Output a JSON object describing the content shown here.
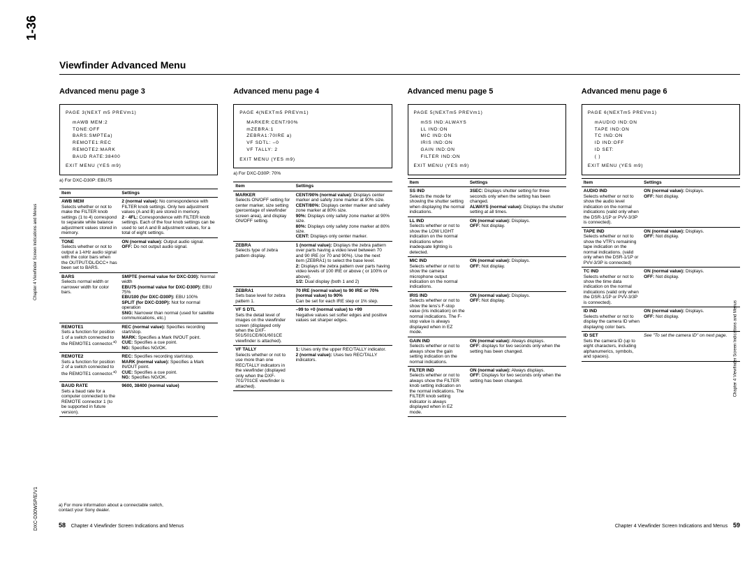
{
  "page_number_side": "1-36",
  "model_side": "DXC-D30WSP/E/V1",
  "side_text": "Chapter 4 Viewfinder Screen Indications and Menus",
  "title": "Viewfinder Advanced Menu",
  "footer_left": {
    "pn": "58",
    "text": "Chapter 4  Viewfinder Screen Indications and Menus"
  },
  "footer_right": {
    "text": "Chapter 4  Viewfinder Screen Indications and Menus",
    "pn": "59"
  },
  "page_footnote": "a)  For more information about a connectable switch,\n     contact your Sony dealer.",
  "cols": [
    {
      "head": "Advanced menu page 3",
      "box_top_left": "PAGE 3(NEXT m5  PREVm1)",
      "box_lines": "mAWB MEM:2\nTONE:OFF\nBARS:SMPTEa)\nREMOTE1:REC\nREMOTE2:MARK\nBAUD RATE:38400",
      "box_bottom": "EXIT MENU (YES m9)",
      "foot": "a)  For DXC-D30P: EBU75",
      "rows": [
        {
          "item": "<span class='b'>AWB MEM</span><br>Selects whether or not to make the FILTER knob settings (1 to 4) correspond to separate white balance adjustment values stored in memory.",
          "set": "<span class='b'>2 (normal value):</span> No correspondence with FILTER knob settings. Only two adjustment values (A and B) are stored in memory.<br><span class='b'>2 · 4FL:</span> Correspondence with FILTER knob settings. Each of the four knob settings can be used to set A and B adjustment values, for a total of eight settings."
        },
        {
          "item": "<span class='b'>TONE</span><br>Selects whether or not to output a 1-kHz audio signal with the color bars when the OUTPUT/DL/DCC+ has been set to BARS.",
          "set": "<span class='b'>ON (normal value):</span> Output audio signal.<br><span class='b'>OFF:</span> Do not output audio signal."
        },
        {
          "item": "<span class='b'>BARS</span><br>Selects normal width or narrower width for color bars.",
          "set": "<span class='b'>SMPTE (normal value for DXC-D30):</span> Normal width<br><span class='b'>EBU75 (normal value for DXC-D30P):</span> EBU 75%<br><span class='b'>EBU100 (for DXC-D30P):</span> EBU 100%<br><span class='b'>SPLIT (for DXC-D30P):</span> Not for normal operation<br><span class='b'>SNG:</span> Narrower than normal (used for satellite communications, etc.)"
        },
        {
          "item": "<span class='b'>REMOTE1</span><br>Sets a function for position 1 of a switch connected to the REMOTE1 connector.<sup>a)</sup>",
          "set": "<span class='b'>REC (normal value):</span> Specifies recording start/stop.<br><span class='b'>MARK:</span> Specifies a Mark IN/OUT point.<br><span class='b'>CUE:</span> Specifies a cue point.<br><span class='b'>NG:</span> Specifies NG/OK."
        },
        {
          "item": "<span class='b'>REMOTE2</span><br>Sets a function for position 2 of a switch connected to the REMOTE1 connector.<sup>a)</sup>",
          "set": "<span class='b'>REC:</span> Specifies recording start/stop.<br><span class='b'>MARK (normal value):</span> Specifies a Mark IN/OUT point.<br><span class='b'>CUE:</span> Specifies a cue point.<br><span class='b'>NG:</span> Specifies NG/OK."
        },
        {
          "item": "<span class='b'>BAUD RATE</span><br>Sets a baud rate for a computer connected to the REMOTE connector 1 (to be supported in future version).",
          "set": "<span class='b'>9600, 38400 (normal value)</span>"
        }
      ]
    },
    {
      "head": "Advanced menu page 4",
      "box_top_left": "PAGE 4(NEXTm5  PREVm1)",
      "box_lines": "MARKER:CENT/90%\nmZEBRA:1\nZEBRA1:70IRE a)\nVF SDTL: –0\nVF TALLY: 2",
      "box_bottom": "EXIT MENU (YES m9)",
      "foot": "a)  For DXC-D30P: 70%",
      "rows": [
        {
          "item": "<span class='b'>MARKER</span><br>Selects ON/OFF setting for center marker, size setting (percentage of viewfinder screen area), and display ON/OFF setting.",
          "set": "<span class='b'>CENT/90% (normal value):</span> Displays center marker and safety zone marker at 90% size.<br><span class='b'>CENT/80%:</span> Displays center marker and safety zone marker at 80% size.<br><span class='b'>90%:</span> Displays only safety zone marker at 90% size.<br><span class='b'>80%:</span> Displays only safety zone marker at 80% size.<br><span class='b'>CENT:</span> Displays only center marker."
        },
        {
          "item": "<span class='b'>ZEBRA</span><br>Selects type of zebra pattern display.",
          "set": "<span class='b'>1 (normal value):</span> Displays the zebra pattern over parts having a video level between 70 and 90 IRE (or 70 and 90%). Use the next item (ZEBRA1) to select the base level.<br><span class='b'>2:</span> Displays the zebra pattern over parts having video levels of 100 IRE or above ( or 100% or above).<br><span class='b'>1/2:</span> Dual display (both 1 and 2)"
        },
        {
          "item": "<span class='b'>ZEBRA1</span><br>Sets base level for zebra pattern 1.",
          "set": "<span class='b'>70 IRE (normal value) to 90 IRE or 70% (normal value) to 90%</span><br>Can be set for each IRE step or 1% step."
        },
        {
          "item": "<span class='b'>VF S DTL</span><br>Sets the detail level of images on the viewfinder screen (displayed only when the DXF-501/501CE/601/601CE viewfinder is attached).",
          "set": "<span class='b'>–99 to +0 (normal value) to +99</span><br>Negative values set softer edges and positive values set sharper edges."
        },
        {
          "item": "<span class='b'>VF TALLY</span><br>Selects whether or not to use more than one REC/TALLY indicators in the viewfinder (displayed only when the DXF-701/701CE viewfinder is attached).",
          "set": "<span class='b'>1:</span> Uses only the upper REC/TALLY indicator.<br><span class='b'>2 (normal value):</span> Uses two REC/TALLY indicators."
        }
      ]
    },
    {
      "head": "Advanced menu page 5",
      "box_top_left": "PAGE 5(NEXTm5  PREVm1)",
      "box_lines": "mSS IND:ALWAYS\nLL IND:ON\nMIC IND:ON\nIRIS IND:ON\nGAIN IND:ON\nFILTER IND:ON",
      "box_bottom": "EXIT MENU (YES m9)",
      "foot": "",
      "rows": [
        {
          "item": "<span class='b'>SS IND</span><br>Selects the mode for showing the shutter setting when displaying the normal indications.",
          "set": "<span class='b'>3SEC:</span> Displays shutter setting for three seconds only when the setting has been changed.<br><span class='b'>ALWAYS (normal value):</span> Displays the shutter setting at all times."
        },
        {
          "item": "<span class='b'>LL IND</span><br>Selects whether or not to show the LOW LIGHT indication on the normal indications when inadequate lighting is detected.",
          "set": "<span class='b'>ON (normal value):</span> Displays.<br><span class='b'>OFF:</span> Not display."
        },
        {
          "item": "<span class='b'>MIC IND</span><br>Selects whether or not to show the camera microphone output indication on the normal indications.",
          "set": "<span class='b'>ON (normal value):</span> Displays.<br><span class='b'>OFF:</span> Not display."
        },
        {
          "item": "<span class='b'>IRIS IND</span><br>Selects whether or not to show the lens's F-stop value (iris indication) on the normal indications. The F-stop value is always displayed when in EZ mode.",
          "set": "<span class='b'>ON (normal value):</span> Displays.<br><span class='b'>OFF:</span> Not display."
        },
        {
          "item": "<span class='b'>GAIN IND</span><br>Selects whether or not to always show the gain setting indication on the normal indications.",
          "set": "<span class='b'>ON (normal value):</span> Always displays.<br><span class='b'>OFF:</span> displays for two seconds only when the setting has been changed."
        },
        {
          "item": "<span class='b'>FILTER IND</span><br>Selects whether or not to always show the FILTER knob setting indication on the normal indications. The FILTER knob setting indicator is always displayed when in EZ mode.",
          "set": "<span class='b'>ON (normal value):</span> Always displays.<br><span class='b'>OFF:</span> Displays for two seconds only when the setting has been changed."
        }
      ]
    },
    {
      "head": "Advanced menu page 6",
      "box_top_left": "PAGE 6(NEXTm5  PREVm1)",
      "box_lines": "mAUDIO IND:ON\nTAPE IND:ON\nTC IND:ON\nID IND:OFF\nID SET:\n(           )",
      "box_bottom": "EXIT MENU (YES m9)",
      "foot": "",
      "rows": [
        {
          "item": "<span class='b'>AUDIO IND</span><br>Selects whether or not to show the audio level indication on the normal indications (valid only when the DSR-1/1P or PVV-3/3P is connected).",
          "set": "<span class='b'>ON (normal value):</span> Displays.<br><span class='b'>OFF:</span> Not display."
        },
        {
          "item": "<span class='b'>TAPE IND</span><br>Selects whether or not to show the VTR's remaining tape indication on the normal indications. (valid only when the DSR-1/1P or PVV-3/3P is connected)",
          "set": "<span class='b'>ON (normal value):</span> Displays.<br><span class='b'>OFF:</span> Not display."
        },
        {
          "item": "<span class='b'>TC IND</span><br>Selects whether or not to show the time data indication on the normal indications (valid only when the DSR-1/1P or PVV-3/3P is connected).",
          "set": "<span class='b'>ON (normal value):</span> Displays.<br><span class='b'>OFF:</span> Not display."
        },
        {
          "item": "<span class='b'>ID IND</span><br>Selects whether or not to display the camera ID when displaying color bars.",
          "set": "<span class='b'>ON (normal value):</span> Displays.<br><span class='b'>OFF:</span> Not display."
        },
        {
          "item": "<span class='b'>ID SET</span><br>Sets the camera ID (up to eight characters, including alphanumerics, symbols, and spaces).",
          "set": "<span class='i'>See \"To set the camera ID\" on next page.</span>"
        }
      ]
    }
  ]
}
